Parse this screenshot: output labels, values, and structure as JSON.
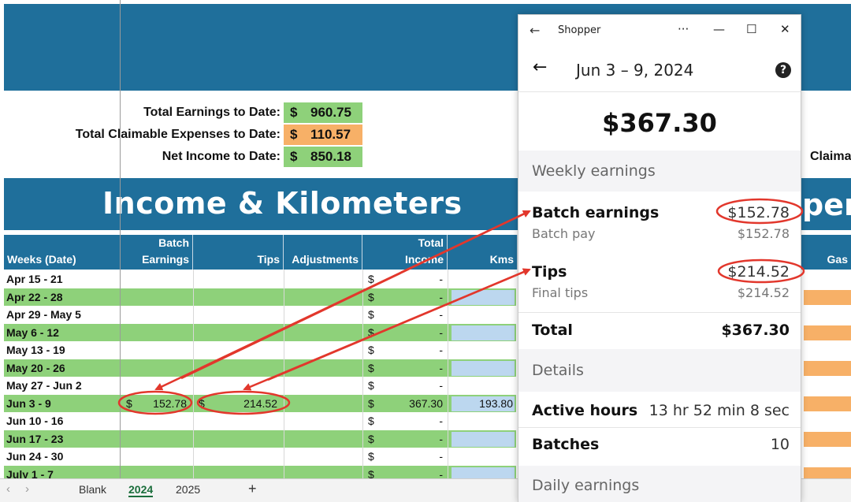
{
  "sheet": {
    "summary": [
      {
        "label": "Total Earnings to Date:",
        "dollar": "$",
        "value": "960.75",
        "color": "#8ed17a"
      },
      {
        "label": "Total Claimable Expenses to Date:",
        "dollar": "$",
        "value": "110.57",
        "color": "#f7b067"
      },
      {
        "label": "Net Income to Date:",
        "dollar": "$",
        "value": "850.18",
        "color": "#8ed17a"
      }
    ],
    "banner_title": "Income & Kilometers",
    "right_banner_fragment": "per",
    "right_claim_fragment": "Claima",
    "headers": {
      "weeks": "Weeks (Date)",
      "batch_l1": "Batch",
      "batch_l2": "Earnings",
      "tips": "Tips",
      "adjustments": "Adjustments",
      "total_l1": "Total",
      "total_l2": "Income",
      "kms": "Kms",
      "gas": "Gas"
    },
    "rows": [
      {
        "week": "Apr 15 - 21",
        "dollar": "$",
        "total": "-"
      },
      {
        "week": "Apr 22 - 28",
        "dollar": "$",
        "total": "-"
      },
      {
        "week": "Apr 29 - May 5",
        "dollar": "$",
        "total": "-"
      },
      {
        "week": "May 6 - 12",
        "dollar": "$",
        "total": "-"
      },
      {
        "week": "May 13 - 19",
        "dollar": "$",
        "total": "-"
      },
      {
        "week": "May 20 - 26",
        "dollar": "$",
        "total": "-"
      },
      {
        "week": "May 27 - Jun 2",
        "dollar": "$",
        "total": "-"
      },
      {
        "week": "Jun 3 - 9",
        "dollar": "$",
        "total": "367.30",
        "batch_dollar": "$",
        "batch": "152.78",
        "tips_dollar": "$",
        "tips": "214.52",
        "kms": "193.80"
      },
      {
        "week": "Jun 10 - 16",
        "dollar": "$",
        "total": "-"
      },
      {
        "week": "Jun 17 - 23",
        "dollar": "$",
        "total": "-"
      },
      {
        "week": "Jun 24 - 30",
        "dollar": "$",
        "total": "-"
      },
      {
        "week": "July 1 - 7",
        "dollar": "$",
        "total": "-"
      }
    ],
    "tabs": [
      "Blank",
      "2024",
      "2025"
    ],
    "active_tab": "2024",
    "add_tab": "+"
  },
  "shopper": {
    "window_title": "Shopper",
    "controls": {
      "more": "···",
      "min": "—",
      "max": "☐",
      "close": "✕"
    },
    "back_glyph": "←",
    "date_range": "Jun 3 – 9, 2024",
    "help": "?",
    "total_amount": "$367.30",
    "weekly_section": "Weekly earnings",
    "batch_label": "Batch earnings",
    "batch_value": "$152.78",
    "batch_pay_label": "Batch pay",
    "batch_pay_value": "$152.78",
    "tips_label": "Tips",
    "tips_value": "$214.52",
    "final_tips_label": "Final tips",
    "final_tips_value": "$214.52",
    "total_label": "Total",
    "total_value": "$367.30",
    "details_section": "Details",
    "active_hours_label": "Active hours",
    "active_hours_value": "13 hr 52 min 8 sec",
    "batches_label": "Batches",
    "batches_value": "10",
    "daily_section": "Daily earnings"
  },
  "colors": {
    "brand_blue": "#1f6f9b",
    "green": "#8ed17a",
    "orange": "#f7b067",
    "light_blue": "#bcd7ef",
    "annotation_red": "#e2372c"
  }
}
